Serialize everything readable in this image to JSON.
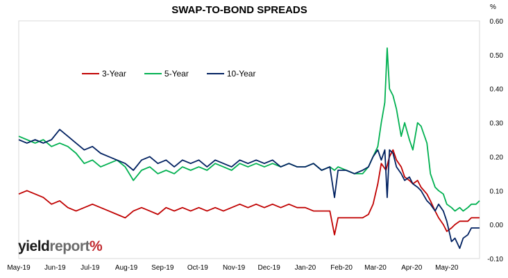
{
  "chart_data": {
    "type": "line",
    "title": "SWAP-TO-BOND SPREADS",
    "ylabel": "%",
    "ylim": [
      -0.1,
      0.6
    ],
    "yticks": [
      "0.60",
      "0.50",
      "0.40",
      "0.30",
      "0.20",
      "0.10",
      "0.00",
      "-0.10"
    ],
    "xticks": [
      "May-19",
      "Jun-19",
      "Jul-19",
      "Aug-19",
      "Sep-19",
      "Oct-19",
      "Nov-19",
      "Dec-19",
      "Jan-20",
      "Feb-20",
      "Mar-20",
      "Apr-20",
      "May-20"
    ],
    "x_start": "2019-05-01",
    "x_end": "2020-05-29",
    "grid": false,
    "legend_position": "top-left",
    "series": [
      {
        "name": "3-Year",
        "color": "#c00000",
        "points": [
          [
            "2019-05-01",
            0.09
          ],
          [
            "2019-05-08",
            0.1
          ],
          [
            "2019-05-15",
            0.09
          ],
          [
            "2019-05-22",
            0.08
          ],
          [
            "2019-05-29",
            0.06
          ],
          [
            "2019-06-05",
            0.07
          ],
          [
            "2019-06-12",
            0.05
          ],
          [
            "2019-06-19",
            0.04
          ],
          [
            "2019-06-26",
            0.05
          ],
          [
            "2019-07-03",
            0.06
          ],
          [
            "2019-07-10",
            0.05
          ],
          [
            "2019-07-17",
            0.04
          ],
          [
            "2019-07-24",
            0.03
          ],
          [
            "2019-07-31",
            0.02
          ],
          [
            "2019-08-07",
            0.04
          ],
          [
            "2019-08-14",
            0.05
          ],
          [
            "2019-08-21",
            0.04
          ],
          [
            "2019-08-28",
            0.03
          ],
          [
            "2019-09-04",
            0.05
          ],
          [
            "2019-09-11",
            0.04
          ],
          [
            "2019-09-18",
            0.05
          ],
          [
            "2019-09-25",
            0.04
          ],
          [
            "2019-10-02",
            0.05
          ],
          [
            "2019-10-09",
            0.04
          ],
          [
            "2019-10-16",
            0.05
          ],
          [
            "2019-10-23",
            0.04
          ],
          [
            "2019-10-30",
            0.05
          ],
          [
            "2019-11-06",
            0.06
          ],
          [
            "2019-11-13",
            0.05
          ],
          [
            "2019-11-20",
            0.06
          ],
          [
            "2019-11-27",
            0.05
          ],
          [
            "2019-12-04",
            0.06
          ],
          [
            "2019-12-11",
            0.05
          ],
          [
            "2019-12-18",
            0.06
          ],
          [
            "2019-12-25",
            0.05
          ],
          [
            "2020-01-01",
            0.05
          ],
          [
            "2020-01-08",
            0.04
          ],
          [
            "2020-01-15",
            0.04
          ],
          [
            "2020-01-22",
            0.04
          ],
          [
            "2020-01-26",
            -0.03
          ],
          [
            "2020-01-29",
            0.02
          ],
          [
            "2020-02-05",
            0.02
          ],
          [
            "2020-02-12",
            0.02
          ],
          [
            "2020-02-19",
            0.02
          ],
          [
            "2020-02-24",
            0.03
          ],
          [
            "2020-02-28",
            0.06
          ],
          [
            "2020-03-03",
            0.12
          ],
          [
            "2020-03-06",
            0.18
          ],
          [
            "2020-03-10",
            0.16
          ],
          [
            "2020-03-13",
            0.2
          ],
          [
            "2020-03-16",
            0.22
          ],
          [
            "2020-03-19",
            0.19
          ],
          [
            "2020-03-23",
            0.17
          ],
          [
            "2020-03-26",
            0.14
          ],
          [
            "2020-03-30",
            0.13
          ],
          [
            "2020-04-02",
            0.12
          ],
          [
            "2020-04-06",
            0.13
          ],
          [
            "2020-04-09",
            0.11
          ],
          [
            "2020-04-14",
            0.09
          ],
          [
            "2020-04-17",
            0.07
          ],
          [
            "2020-04-21",
            0.04
          ],
          [
            "2020-04-24",
            0.02
          ],
          [
            "2020-04-28",
            0.0
          ],
          [
            "2020-05-01",
            -0.02
          ],
          [
            "2020-05-05",
            -0.01
          ],
          [
            "2020-05-08",
            0.0
          ],
          [
            "2020-05-12",
            0.01
          ],
          [
            "2020-05-15",
            0.01
          ],
          [
            "2020-05-19",
            0.01
          ],
          [
            "2020-05-22",
            0.02
          ],
          [
            "2020-05-26",
            0.02
          ],
          [
            "2020-05-29",
            0.02
          ]
        ]
      },
      {
        "name": "5-Year",
        "color": "#00b050",
        "points": [
          [
            "2019-05-01",
            0.26
          ],
          [
            "2019-05-08",
            0.25
          ],
          [
            "2019-05-15",
            0.24
          ],
          [
            "2019-05-22",
            0.25
          ],
          [
            "2019-05-29",
            0.23
          ],
          [
            "2019-06-05",
            0.24
          ],
          [
            "2019-06-12",
            0.23
          ],
          [
            "2019-06-19",
            0.21
          ],
          [
            "2019-06-26",
            0.18
          ],
          [
            "2019-07-03",
            0.19
          ],
          [
            "2019-07-10",
            0.17
          ],
          [
            "2019-07-17",
            0.18
          ],
          [
            "2019-07-24",
            0.19
          ],
          [
            "2019-07-31",
            0.17
          ],
          [
            "2019-08-07",
            0.13
          ],
          [
            "2019-08-14",
            0.16
          ],
          [
            "2019-08-21",
            0.17
          ],
          [
            "2019-08-28",
            0.15
          ],
          [
            "2019-09-04",
            0.16
          ],
          [
            "2019-09-11",
            0.15
          ],
          [
            "2019-09-18",
            0.17
          ],
          [
            "2019-09-25",
            0.16
          ],
          [
            "2019-10-02",
            0.17
          ],
          [
            "2019-10-09",
            0.16
          ],
          [
            "2019-10-16",
            0.18
          ],
          [
            "2019-10-23",
            0.17
          ],
          [
            "2019-10-30",
            0.16
          ],
          [
            "2019-11-06",
            0.18
          ],
          [
            "2019-11-13",
            0.17
          ],
          [
            "2019-11-20",
            0.18
          ],
          [
            "2019-11-27",
            0.17
          ],
          [
            "2019-12-04",
            0.18
          ],
          [
            "2019-12-11",
            0.17
          ],
          [
            "2019-12-18",
            0.18
          ],
          [
            "2019-12-25",
            0.17
          ],
          [
            "2020-01-01",
            0.17
          ],
          [
            "2020-01-08",
            0.18
          ],
          [
            "2020-01-15",
            0.16
          ],
          [
            "2020-01-22",
            0.17
          ],
          [
            "2020-01-26",
            0.16
          ],
          [
            "2020-01-29",
            0.17
          ],
          [
            "2020-02-05",
            0.16
          ],
          [
            "2020-02-12",
            0.15
          ],
          [
            "2020-02-19",
            0.15
          ],
          [
            "2020-02-24",
            0.17
          ],
          [
            "2020-02-28",
            0.2
          ],
          [
            "2020-03-03",
            0.23
          ],
          [
            "2020-03-06",
            0.3
          ],
          [
            "2020-03-09",
            0.36
          ],
          [
            "2020-03-11",
            0.52
          ],
          [
            "2020-03-13",
            0.4
          ],
          [
            "2020-03-16",
            0.38
          ],
          [
            "2020-03-19",
            0.34
          ],
          [
            "2020-03-23",
            0.26
          ],
          [
            "2020-03-26",
            0.3
          ],
          [
            "2020-03-30",
            0.25
          ],
          [
            "2020-04-02",
            0.22
          ],
          [
            "2020-04-06",
            0.3
          ],
          [
            "2020-04-09",
            0.29
          ],
          [
            "2020-04-14",
            0.24
          ],
          [
            "2020-04-17",
            0.15
          ],
          [
            "2020-04-21",
            0.11
          ],
          [
            "2020-04-24",
            0.1
          ],
          [
            "2020-04-28",
            0.09
          ],
          [
            "2020-05-01",
            0.06
          ],
          [
            "2020-05-05",
            0.05
          ],
          [
            "2020-05-08",
            0.04
          ],
          [
            "2020-05-12",
            0.05
          ],
          [
            "2020-05-15",
            0.04
          ],
          [
            "2020-05-19",
            0.05
          ],
          [
            "2020-05-22",
            0.06
          ],
          [
            "2020-05-26",
            0.06
          ],
          [
            "2020-05-29",
            0.07
          ]
        ]
      },
      {
        "name": "10-Year",
        "color": "#002060",
        "points": [
          [
            "2019-05-01",
            0.25
          ],
          [
            "2019-05-08",
            0.24
          ],
          [
            "2019-05-15",
            0.25
          ],
          [
            "2019-05-22",
            0.24
          ],
          [
            "2019-05-29",
            0.25
          ],
          [
            "2019-06-05",
            0.28
          ],
          [
            "2019-06-12",
            0.26
          ],
          [
            "2019-06-19",
            0.24
          ],
          [
            "2019-06-26",
            0.22
          ],
          [
            "2019-07-03",
            0.23
          ],
          [
            "2019-07-10",
            0.21
          ],
          [
            "2019-07-17",
            0.2
          ],
          [
            "2019-07-24",
            0.19
          ],
          [
            "2019-07-31",
            0.18
          ],
          [
            "2019-08-07",
            0.16
          ],
          [
            "2019-08-14",
            0.19
          ],
          [
            "2019-08-21",
            0.2
          ],
          [
            "2019-08-28",
            0.18
          ],
          [
            "2019-09-04",
            0.19
          ],
          [
            "2019-09-11",
            0.17
          ],
          [
            "2019-09-18",
            0.19
          ],
          [
            "2019-09-25",
            0.18
          ],
          [
            "2019-10-02",
            0.19
          ],
          [
            "2019-10-09",
            0.17
          ],
          [
            "2019-10-16",
            0.19
          ],
          [
            "2019-10-23",
            0.18
          ],
          [
            "2019-10-30",
            0.17
          ],
          [
            "2019-11-06",
            0.19
          ],
          [
            "2019-11-13",
            0.18
          ],
          [
            "2019-11-20",
            0.19
          ],
          [
            "2019-11-27",
            0.18
          ],
          [
            "2019-12-04",
            0.19
          ],
          [
            "2019-12-11",
            0.17
          ],
          [
            "2019-12-18",
            0.18
          ],
          [
            "2019-12-25",
            0.17
          ],
          [
            "2020-01-01",
            0.17
          ],
          [
            "2020-01-08",
            0.18
          ],
          [
            "2020-01-15",
            0.16
          ],
          [
            "2020-01-22",
            0.17
          ],
          [
            "2020-01-26",
            0.08
          ],
          [
            "2020-01-29",
            0.16
          ],
          [
            "2020-02-05",
            0.16
          ],
          [
            "2020-02-12",
            0.15
          ],
          [
            "2020-02-19",
            0.16
          ],
          [
            "2020-02-24",
            0.17
          ],
          [
            "2020-02-28",
            0.2
          ],
          [
            "2020-03-03",
            0.22
          ],
          [
            "2020-03-06",
            0.19
          ],
          [
            "2020-03-09",
            0.22
          ],
          [
            "2020-03-11",
            0.08
          ],
          [
            "2020-03-13",
            0.22
          ],
          [
            "2020-03-16",
            0.21
          ],
          [
            "2020-03-19",
            0.17
          ],
          [
            "2020-03-23",
            0.15
          ],
          [
            "2020-03-26",
            0.13
          ],
          [
            "2020-03-30",
            0.14
          ],
          [
            "2020-04-02",
            0.12
          ],
          [
            "2020-04-06",
            0.11
          ],
          [
            "2020-04-09",
            0.1
          ],
          [
            "2020-04-14",
            0.07
          ],
          [
            "2020-04-17",
            0.06
          ],
          [
            "2020-04-21",
            0.04
          ],
          [
            "2020-04-24",
            0.06
          ],
          [
            "2020-04-28",
            0.04
          ],
          [
            "2020-05-01",
            0.01
          ],
          [
            "2020-05-05",
            -0.05
          ],
          [
            "2020-05-08",
            -0.04
          ],
          [
            "2020-05-12",
            -0.07
          ],
          [
            "2020-05-15",
            -0.04
          ],
          [
            "2020-05-19",
            -0.03
          ],
          [
            "2020-05-22",
            -0.01
          ],
          [
            "2020-05-26",
            -0.01
          ],
          [
            "2020-05-29",
            -0.01
          ]
        ]
      }
    ]
  },
  "branding": {
    "part1": "yield",
    "part2": "report",
    "part3": "%"
  }
}
